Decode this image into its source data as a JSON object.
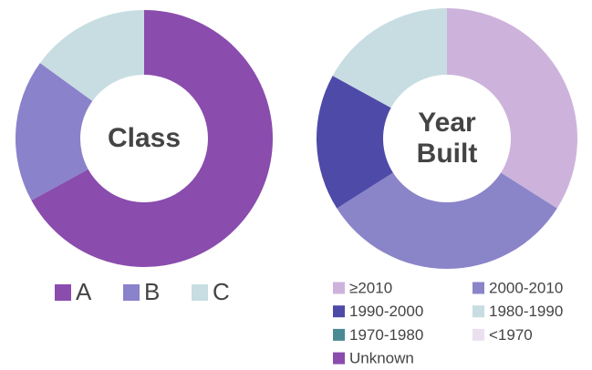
{
  "chart_data": [
    {
      "type": "donut",
      "title": "Class",
      "categories": [
        "A",
        "B",
        "C"
      ],
      "values": [
        67,
        18,
        15
      ],
      "colors": [
        "#8a4cad",
        "#8a82cb",
        "#c7dde2"
      ]
    },
    {
      "type": "donut",
      "title": "Year Built",
      "categories": [
        "≥2010",
        "2000-2010",
        "1990-2000",
        "1980-1990",
        "1970-1980",
        "<1970",
        "Unknown"
      ],
      "values": [
        34,
        32,
        17,
        17,
        0,
        0,
        0
      ],
      "colors": [
        "#cdb3dc",
        "#8a85c9",
        "#4e4aa8",
        "#c7dde2",
        "#4a8a93",
        "#ebe0f0",
        "#8a4cad"
      ]
    }
  ]
}
